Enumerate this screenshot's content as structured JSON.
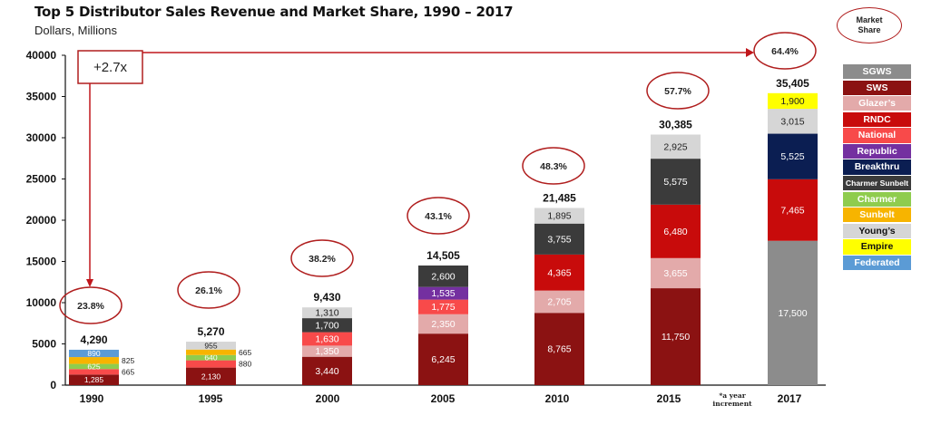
{
  "title": "Top 5 Distributor Sales Revenue and Market Share, 1990 – 2017",
  "subtitle": "Dollars, Millions",
  "market_share_header": "Market Share",
  "growth_label": "+2.7x",
  "footnote": "*a year increment",
  "legend": [
    {
      "name": "SGWS",
      "color": "#8c8c8c",
      "text_color": "#ffffff"
    },
    {
      "name": "SWS",
      "color": "#8b1212",
      "text_color": "#ffffff"
    },
    {
      "name": "Glazer’s",
      "color": "#e3aaaa",
      "text_color": "#ffffff"
    },
    {
      "name": "RNDC",
      "color": "#c80b0b",
      "text_color": "#ffffff"
    },
    {
      "name": "National",
      "color": "#f84a4a",
      "text_color": "#ffffff"
    },
    {
      "name": "Republic",
      "color": "#7430a0",
      "text_color": "#ffffff"
    },
    {
      "name": "Breakthru",
      "color": "#0b1e52",
      "text_color": "#ffffff"
    },
    {
      "name": "Charmer Sunbelt",
      "color": "#3b3b3b",
      "text_color": "#ffffff"
    },
    {
      "name": "Charmer",
      "color": "#8fcc4e",
      "text_color": "#ffffff"
    },
    {
      "name": "Sunbelt",
      "color": "#f7b400",
      "text_color": "#ffffff"
    },
    {
      "name": "Young’s",
      "color": "#d6d6d6",
      "text_color": "#111111"
    },
    {
      "name": "Empire",
      "color": "#ffff00",
      "text_color": "#111111"
    },
    {
      "name": "Federated",
      "color": "#5b9bd5",
      "text_color": "#ffffff"
    }
  ],
  "chart_data": {
    "type": "bar",
    "stacked": true,
    "title": "Top 5 Distributor Sales Revenue and Market Share, 1990 – 2017",
    "ylabel": "Dollars, Millions",
    "ylim": [
      0,
      40000
    ],
    "yticks": [
      "0",
      "5000",
      "10000",
      "15000",
      "20000",
      "25000",
      "30000",
      "35000",
      "40000"
    ],
    "categories": [
      "1990",
      "1995",
      "2000",
      "2005",
      "2010",
      "2015",
      "2017"
    ],
    "totals": [
      "4,290",
      "5,270",
      "9,430",
      "14,505",
      "21,485",
      "30,385",
      "35,405"
    ],
    "market_share": [
      "23.8%",
      "26.1%",
      "38.2%",
      "43.1%",
      "48.3%",
      "57.7%",
      "64.4%"
    ],
    "bars": [
      {
        "year": "1990",
        "segments": [
          {
            "series": "SWS",
            "value": 1285,
            "label": "1,285"
          },
          {
            "series": "National",
            "value": 665,
            "label": "665"
          },
          {
            "series": "Charmer",
            "value": 625,
            "label": "625"
          },
          {
            "series": "Sunbelt",
            "value": 825,
            "label": "825"
          },
          {
            "series": "Federated",
            "value": 890,
            "label": "890"
          }
        ]
      },
      {
        "year": "1995",
        "segments": [
          {
            "series": "SWS",
            "value": 2130,
            "label": "2,130"
          },
          {
            "series": "National",
            "value": 880,
            "label": "880"
          },
          {
            "series": "Charmer",
            "value": 640,
            "label": "640"
          },
          {
            "series": "Sunbelt",
            "value": 665,
            "label": "665"
          },
          {
            "series": "Young’s",
            "value": 955,
            "label": "955"
          }
        ]
      },
      {
        "year": "2000",
        "segments": [
          {
            "series": "SWS",
            "value": 3440,
            "label": "3,440"
          },
          {
            "series": "Glazer’s",
            "value": 1350,
            "label": "1,350"
          },
          {
            "series": "National",
            "value": 1630,
            "label": "1,630"
          },
          {
            "series": "Charmer Sunbelt",
            "value": 1700,
            "label": "1,700"
          },
          {
            "series": "Young’s",
            "value": 1310,
            "label": "1,310"
          }
        ]
      },
      {
        "year": "2005",
        "segments": [
          {
            "series": "SWS",
            "value": 6245,
            "label": "6,245"
          },
          {
            "series": "Glazer’s",
            "value": 2350,
            "label": "2,350"
          },
          {
            "series": "National",
            "value": 1775,
            "label": "1,775"
          },
          {
            "series": "Republic",
            "value": 1535,
            "label": "1,535"
          },
          {
            "series": "Charmer Sunbelt",
            "value": 2600,
            "label": "2,600"
          }
        ]
      },
      {
        "year": "2010",
        "segments": [
          {
            "series": "SWS",
            "value": 8765,
            "label": "8,765"
          },
          {
            "series": "Glazer’s",
            "value": 2705,
            "label": "2,705"
          },
          {
            "series": "RNDC",
            "value": 4365,
            "label": "4,365"
          },
          {
            "series": "Charmer Sunbelt",
            "value": 3755,
            "label": "3,755"
          },
          {
            "series": "Young’s",
            "value": 1895,
            "label": "1,895"
          }
        ]
      },
      {
        "year": "2015",
        "segments": [
          {
            "series": "SWS",
            "value": 11750,
            "label": "11,750"
          },
          {
            "series": "Glazer’s",
            "value": 3655,
            "label": "3,655"
          },
          {
            "series": "RNDC",
            "value": 6480,
            "label": "6,480"
          },
          {
            "series": "Charmer Sunbelt",
            "value": 5575,
            "label": "5,575"
          },
          {
            "series": "Young’s",
            "value": 2925,
            "label": "2,925"
          }
        ]
      },
      {
        "year": "2017",
        "segments": [
          {
            "series": "SGWS",
            "value": 17500,
            "label": "17,500"
          },
          {
            "series": "RNDC",
            "value": 7465,
            "label": "7,465"
          },
          {
            "series": "Breakthru",
            "value": 5525,
            "label": "5,525"
          },
          {
            "series": "Young’s",
            "value": 3015,
            "label": "3,015"
          },
          {
            "series": "Empire",
            "value": 1900,
            "label": "1,900"
          }
        ]
      }
    ]
  }
}
